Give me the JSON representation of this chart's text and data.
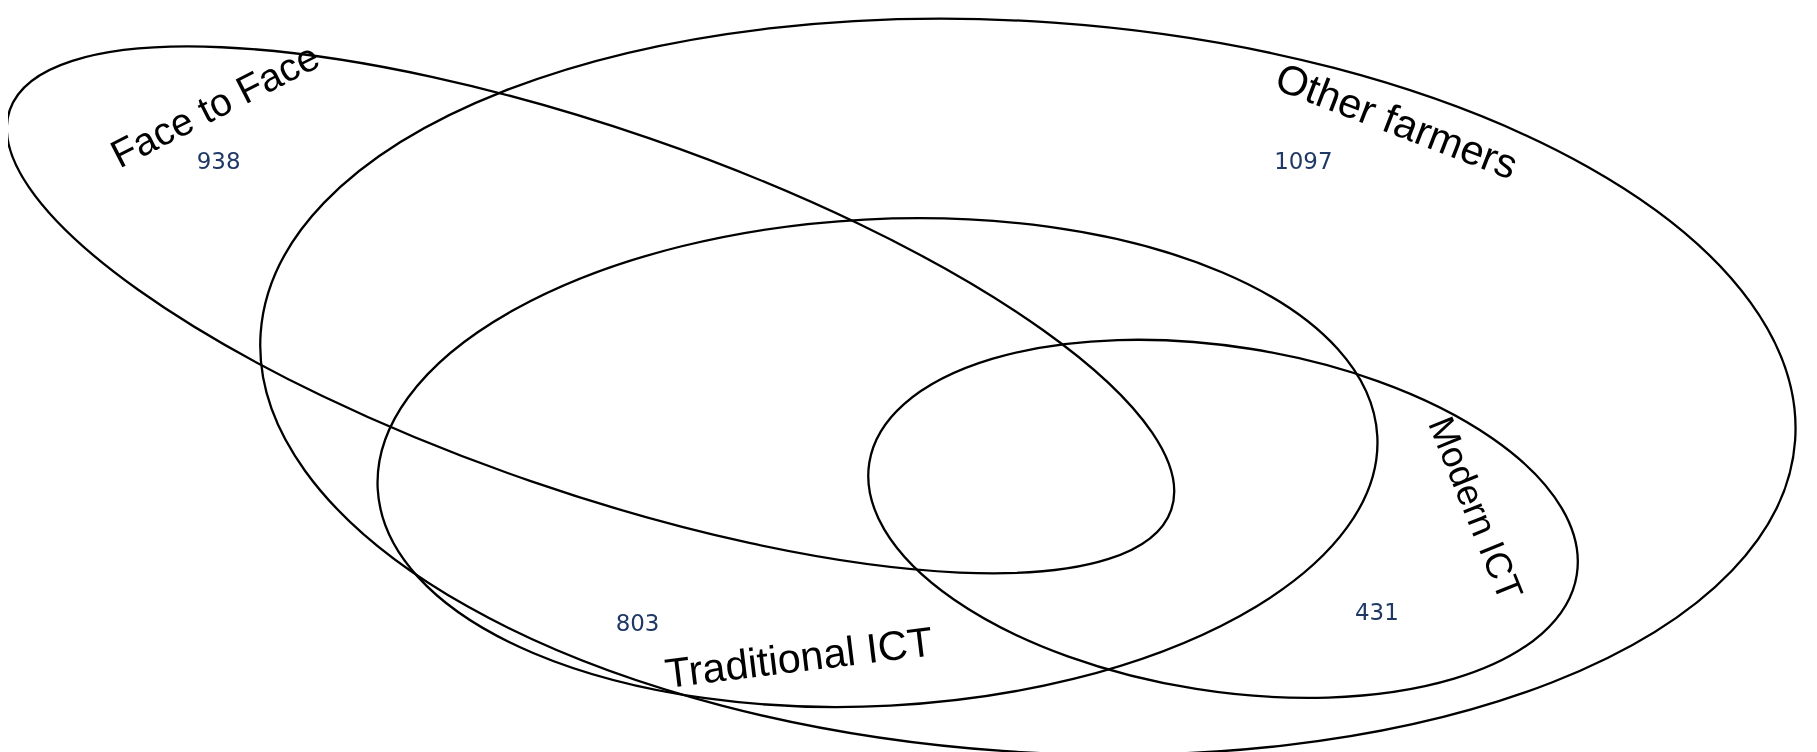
{
  "chart_data": {
    "type": "other",
    "categories": [
      "Face to Face",
      "Other farmers",
      "Traditional ICT",
      "Modern ICT"
    ],
    "values": [
      938,
      1097,
      803,
      431
    ],
    "data_labels": true
  }
}
